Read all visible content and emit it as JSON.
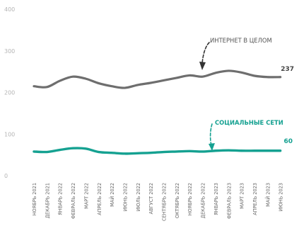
{
  "chart_data": {
    "type": "line",
    "categories": [
      "НОЯБРЬ 2021",
      "ДЕКАБРЬ 2021",
      "ЯНВАРЬ 2022",
      "ФЕВРАЛЬ 2022",
      "МАРТ 2022",
      "АПРЕЛЬ 2022",
      "МАЙ 2022",
      "ИЮНЬ 2022",
      "ИЮЛЬ 2022",
      "АВГУСТ 2022",
      "СЕНТЯБРЬ 2022",
      "ОКТЯБРЬ 2022",
      "НОЯБРЬ 2022",
      "ДЕКАБРЬ 2022",
      "ЯНВАРЬ 2023",
      "ФЕВРАЛЬ 2023",
      "МАРТ 2023",
      "АПРЕЛЬ 2023",
      "МАЙ 2023",
      "ИЮНЬ 2023"
    ],
    "yticks": [
      "0",
      "100",
      "200",
      "300",
      "400"
    ],
    "ylim": [
      0,
      400
    ],
    "grid": false,
    "series": [
      {
        "name": "ИНТЕРНЕТ В ЦЕЛОМ",
        "color": "#6e6e6e",
        "end_label": "237",
        "values": [
          215,
          213,
          228,
          238,
          233,
          222,
          215,
          211,
          218,
          223,
          229,
          235,
          241,
          238,
          247,
          252,
          248,
          240,
          237,
          237
        ]
      },
      {
        "name": "СОЦИАЛЬНЫЕ СЕТИ",
        "color": "#15a191",
        "end_label": "60",
        "values": [
          58,
          57,
          62,
          66,
          65,
          57,
          55,
          53,
          54,
          55,
          57,
          58,
          59,
          58,
          60,
          61,
          60,
          60,
          60,
          60
        ]
      }
    ]
  }
}
